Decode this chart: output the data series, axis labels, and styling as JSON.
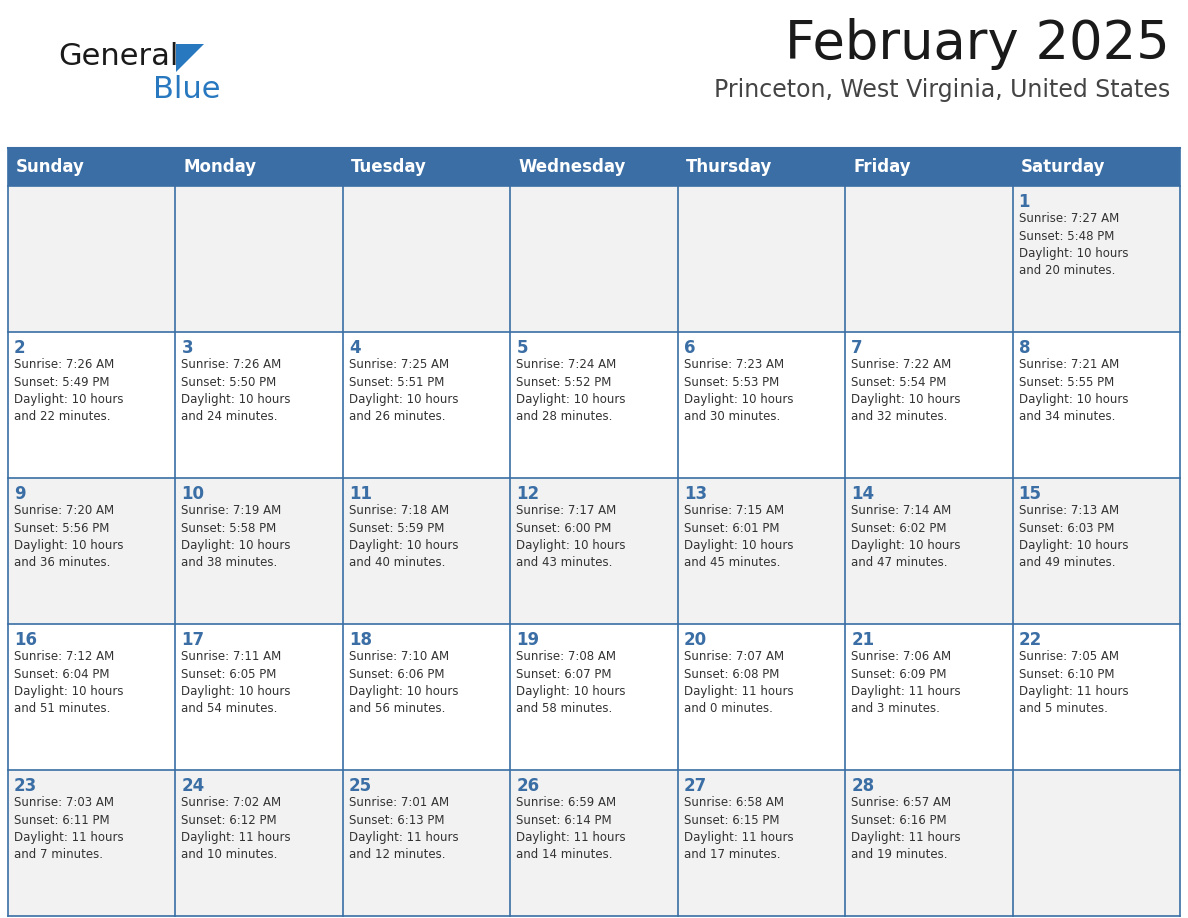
{
  "title": "February 2025",
  "subtitle": "Princeton, West Virginia, United States",
  "header_bg": "#3a6ea5",
  "header_text_color": "#ffffff",
  "cell_bg_alt": "#f2f2f2",
  "cell_bg_main": "#ffffff",
  "day_number_color": "#3a6ea5",
  "text_color": "#333333",
  "border_color": "#3a6ea5",
  "days_of_week": [
    "Sunday",
    "Monday",
    "Tuesday",
    "Wednesday",
    "Thursday",
    "Friday",
    "Saturday"
  ],
  "weeks": [
    [
      {
        "day": null,
        "info": null
      },
      {
        "day": null,
        "info": null
      },
      {
        "day": null,
        "info": null
      },
      {
        "day": null,
        "info": null
      },
      {
        "day": null,
        "info": null
      },
      {
        "day": null,
        "info": null
      },
      {
        "day": 1,
        "info": "Sunrise: 7:27 AM\nSunset: 5:48 PM\nDaylight: 10 hours\nand 20 minutes."
      }
    ],
    [
      {
        "day": 2,
        "info": "Sunrise: 7:26 AM\nSunset: 5:49 PM\nDaylight: 10 hours\nand 22 minutes."
      },
      {
        "day": 3,
        "info": "Sunrise: 7:26 AM\nSunset: 5:50 PM\nDaylight: 10 hours\nand 24 minutes."
      },
      {
        "day": 4,
        "info": "Sunrise: 7:25 AM\nSunset: 5:51 PM\nDaylight: 10 hours\nand 26 minutes."
      },
      {
        "day": 5,
        "info": "Sunrise: 7:24 AM\nSunset: 5:52 PM\nDaylight: 10 hours\nand 28 minutes."
      },
      {
        "day": 6,
        "info": "Sunrise: 7:23 AM\nSunset: 5:53 PM\nDaylight: 10 hours\nand 30 minutes."
      },
      {
        "day": 7,
        "info": "Sunrise: 7:22 AM\nSunset: 5:54 PM\nDaylight: 10 hours\nand 32 minutes."
      },
      {
        "day": 8,
        "info": "Sunrise: 7:21 AM\nSunset: 5:55 PM\nDaylight: 10 hours\nand 34 minutes."
      }
    ],
    [
      {
        "day": 9,
        "info": "Sunrise: 7:20 AM\nSunset: 5:56 PM\nDaylight: 10 hours\nand 36 minutes."
      },
      {
        "day": 10,
        "info": "Sunrise: 7:19 AM\nSunset: 5:58 PM\nDaylight: 10 hours\nand 38 minutes."
      },
      {
        "day": 11,
        "info": "Sunrise: 7:18 AM\nSunset: 5:59 PM\nDaylight: 10 hours\nand 40 minutes."
      },
      {
        "day": 12,
        "info": "Sunrise: 7:17 AM\nSunset: 6:00 PM\nDaylight: 10 hours\nand 43 minutes."
      },
      {
        "day": 13,
        "info": "Sunrise: 7:15 AM\nSunset: 6:01 PM\nDaylight: 10 hours\nand 45 minutes."
      },
      {
        "day": 14,
        "info": "Sunrise: 7:14 AM\nSunset: 6:02 PM\nDaylight: 10 hours\nand 47 minutes."
      },
      {
        "day": 15,
        "info": "Sunrise: 7:13 AM\nSunset: 6:03 PM\nDaylight: 10 hours\nand 49 minutes."
      }
    ],
    [
      {
        "day": 16,
        "info": "Sunrise: 7:12 AM\nSunset: 6:04 PM\nDaylight: 10 hours\nand 51 minutes."
      },
      {
        "day": 17,
        "info": "Sunrise: 7:11 AM\nSunset: 6:05 PM\nDaylight: 10 hours\nand 54 minutes."
      },
      {
        "day": 18,
        "info": "Sunrise: 7:10 AM\nSunset: 6:06 PM\nDaylight: 10 hours\nand 56 minutes."
      },
      {
        "day": 19,
        "info": "Sunrise: 7:08 AM\nSunset: 6:07 PM\nDaylight: 10 hours\nand 58 minutes."
      },
      {
        "day": 20,
        "info": "Sunrise: 7:07 AM\nSunset: 6:08 PM\nDaylight: 11 hours\nand 0 minutes."
      },
      {
        "day": 21,
        "info": "Sunrise: 7:06 AM\nSunset: 6:09 PM\nDaylight: 11 hours\nand 3 minutes."
      },
      {
        "day": 22,
        "info": "Sunrise: 7:05 AM\nSunset: 6:10 PM\nDaylight: 11 hours\nand 5 minutes."
      }
    ],
    [
      {
        "day": 23,
        "info": "Sunrise: 7:03 AM\nSunset: 6:11 PM\nDaylight: 11 hours\nand 7 minutes."
      },
      {
        "day": 24,
        "info": "Sunrise: 7:02 AM\nSunset: 6:12 PM\nDaylight: 11 hours\nand 10 minutes."
      },
      {
        "day": 25,
        "info": "Sunrise: 7:01 AM\nSunset: 6:13 PM\nDaylight: 11 hours\nand 12 minutes."
      },
      {
        "day": 26,
        "info": "Sunrise: 6:59 AM\nSunset: 6:14 PM\nDaylight: 11 hours\nand 14 minutes."
      },
      {
        "day": 27,
        "info": "Sunrise: 6:58 AM\nSunset: 6:15 PM\nDaylight: 11 hours\nand 17 minutes."
      },
      {
        "day": 28,
        "info": "Sunrise: 6:57 AM\nSunset: 6:16 PM\nDaylight: 11 hours\nand 19 minutes."
      },
      {
        "day": null,
        "info": null
      }
    ]
  ],
  "logo_general_color": "#1a1a1a",
  "logo_blue_color": "#2878c0",
  "logo_triangle_color": "#2878c0",
  "title_fontsize": 38,
  "subtitle_fontsize": 17,
  "dow_fontsize": 12,
  "day_num_fontsize": 12,
  "cell_text_fontsize": 8.5
}
